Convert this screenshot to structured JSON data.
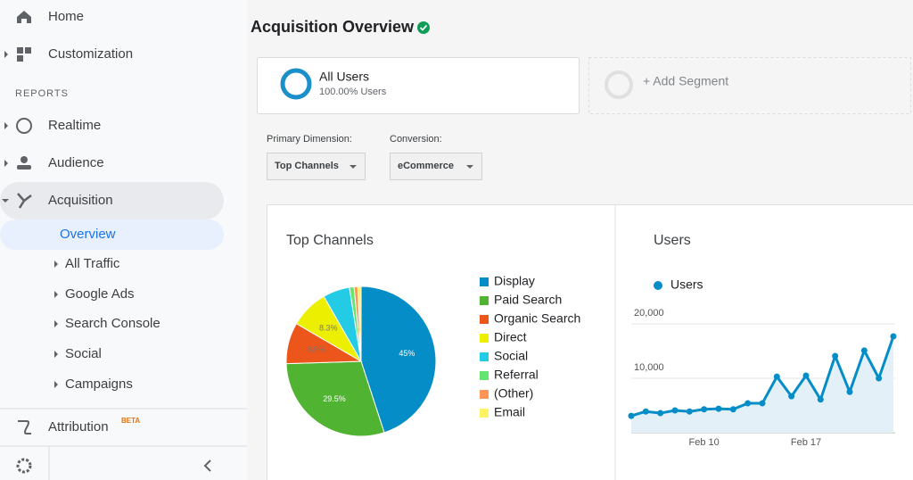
{
  "sidebar": {
    "items": [
      "Home",
      "Customization"
    ],
    "section": "REPORTS",
    "reports": [
      "Realtime",
      "Audience",
      "Acquisition"
    ],
    "active": "Overview",
    "sub_items": [
      "All Traffic",
      "Google Ads",
      "Search Console",
      "Social",
      "Campaigns"
    ],
    "attribution": "Attribution",
    "badge": "BETA"
  },
  "header": {
    "title": "Acquisition Overview"
  },
  "segments": {
    "name": "All Users",
    "detail": "100.00% Users",
    "add": "+ Add Segment"
  },
  "controls": {
    "dimension_label": "Primary Dimension:",
    "dimension": "Top Channels",
    "conversion_label": "Conversion:",
    "conversion": "eCommerce"
  },
  "chart_data": [
    {
      "type": "pie",
      "title": "Top Channels",
      "categories": [
        "Display",
        "Paid Search",
        "Organic Search",
        "Direct",
        "Social",
        "Referral",
        "(Other)",
        "Email"
      ],
      "values": [
        45,
        29.5,
        8.9,
        8.3,
        5.8,
        1.0,
        0.8,
        0.7
      ],
      "value_labels": [
        "45%",
        "29.5%",
        "8.9%",
        "8.3%",
        null,
        null,
        null,
        null
      ],
      "colors": [
        "#058dc7",
        "#50b432",
        "#ed561b",
        "#edef00",
        "#24cbe5",
        "#64e572",
        "#ff9655",
        "#fff263"
      ]
    },
    {
      "type": "line",
      "title": "Users",
      "categories": [
        null,
        null,
        null,
        null,
        null,
        "Feb 10",
        null,
        null,
        null,
        null,
        null,
        null,
        "Feb 17",
        null,
        null,
        null,
        null,
        null,
        null
      ],
      "series": [
        {
          "name": "Users",
          "color": "#058dc7",
          "values": [
            3100,
            3900,
            3600,
            4100,
            3900,
            4300,
            4400,
            4300,
            5400,
            5400,
            10300,
            6700,
            10500,
            6100,
            14100,
            7500,
            15100,
            10000,
            17700
          ]
        }
      ],
      "ylim": [
        0,
        20000
      ],
      "yticks": [
        {
          "value": 10000,
          "label": "10,000"
        },
        {
          "value": 20000,
          "label": "20,000"
        }
      ],
      "grid": true,
      "area": true
    }
  ]
}
